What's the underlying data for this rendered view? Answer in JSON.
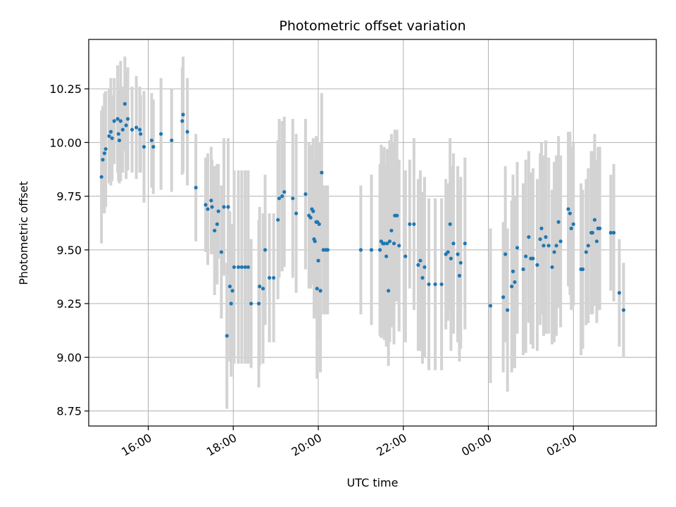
{
  "chart_data": {
    "type": "scatter",
    "title": "Photometric offset variation",
    "xlabel": "UTC time",
    "ylabel": "Photometric offset",
    "x_units": "hours since 00:00 of first day",
    "xlim": [
      14.6,
      27.95
    ],
    "ylim": [
      8.68,
      10.48
    ],
    "grid": true,
    "x_ticks": [
      {
        "value": 16,
        "label": "16:00"
      },
      {
        "value": 18,
        "label": "18:00"
      },
      {
        "value": 20,
        "label": "20:00"
      },
      {
        "value": 22,
        "label": "22:00"
      },
      {
        "value": 24,
        "label": "00:00"
      },
      {
        "value": 26,
        "label": "02:00"
      }
    ],
    "y_ticks": [
      {
        "value": 8.75,
        "label": "8.75"
      },
      {
        "value": 9.0,
        "label": "9.00"
      },
      {
        "value": 9.25,
        "label": "9.25"
      },
      {
        "value": 9.5,
        "label": "9.50"
      },
      {
        "value": 9.75,
        "label": "9.75"
      },
      {
        "value": 10.0,
        "label": "10.00"
      },
      {
        "value": 10.25,
        "label": "10.25"
      }
    ],
    "marker_color": "#1f77b4",
    "errorbar_color": "#d3d3d3",
    "series": [
      {
        "name": "offset",
        "points": [
          [
            14.9,
            9.84,
            0.31
          ],
          [
            14.93,
            9.92,
            0.25
          ],
          [
            14.97,
            9.95,
            0.28
          ],
          [
            15.0,
            9.97,
            0.27
          ],
          [
            15.08,
            10.03,
            0.22
          ],
          [
            15.12,
            10.05,
            0.25
          ],
          [
            15.15,
            10.02,
            0.2
          ],
          [
            15.2,
            10.1,
            0.2
          ],
          [
            15.28,
            10.11,
            0.25
          ],
          [
            15.3,
            10.04,
            0.22
          ],
          [
            15.32,
            10.01,
            0.2
          ],
          [
            15.35,
            10.1,
            0.28
          ],
          [
            15.4,
            10.06,
            0.2
          ],
          [
            15.45,
            10.18,
            0.22
          ],
          [
            15.48,
            10.08,
            0.25
          ],
          [
            15.52,
            10.11,
            0.24
          ],
          [
            15.62,
            10.06,
            0.2
          ],
          [
            15.72,
            10.07,
            0.24
          ],
          [
            15.8,
            10.06,
            0.2
          ],
          [
            15.82,
            10.04,
            0.18
          ],
          [
            15.9,
            9.98,
            0.26
          ],
          [
            16.08,
            10.01,
            0.22
          ],
          [
            16.12,
            9.98,
            0.22
          ],
          [
            16.3,
            10.04,
            0.26
          ],
          [
            16.55,
            10.01,
            0.24
          ],
          [
            16.8,
            10.1,
            0.25
          ],
          [
            16.82,
            10.13,
            0.27
          ],
          [
            16.92,
            10.05,
            0.25
          ],
          [
            17.12,
            9.79,
            0.25
          ],
          [
            17.35,
            9.71,
            0.22
          ],
          [
            17.4,
            9.69,
            0.26
          ],
          [
            17.48,
            9.73,
            0.25
          ],
          [
            17.5,
            9.7,
            0.22
          ],
          [
            17.56,
            9.59,
            0.3
          ],
          [
            17.62,
            9.62,
            0.28
          ],
          [
            17.65,
            9.68,
            0.22
          ],
          [
            17.72,
            9.49,
            0.31
          ],
          [
            17.78,
            9.7,
            0.32
          ],
          [
            17.85,
            9.1,
            0.34
          ],
          [
            17.88,
            9.7,
            0.32
          ],
          [
            17.92,
            9.33,
            0.35
          ],
          [
            17.95,
            9.25,
            0.34
          ],
          [
            17.98,
            9.31,
            0.31
          ],
          [
            18.02,
            9.42,
            0.45
          ],
          [
            18.12,
            9.42,
            0.45
          ],
          [
            18.2,
            9.42,
            0.45
          ],
          [
            18.28,
            9.42,
            0.45
          ],
          [
            18.35,
            9.42,
            0.45
          ],
          [
            18.42,
            9.25,
            0.3
          ],
          [
            18.6,
            9.25,
            0.39
          ],
          [
            18.62,
            9.33,
            0.37
          ],
          [
            18.7,
            9.32,
            0.35
          ],
          [
            18.75,
            9.5,
            0.35
          ],
          [
            18.85,
            9.37,
            0.3
          ],
          [
            18.95,
            9.37,
            0.3
          ],
          [
            19.05,
            9.64,
            0.37
          ],
          [
            19.08,
            9.74,
            0.37
          ],
          [
            19.15,
            9.75,
            0.35
          ],
          [
            19.2,
            9.77,
            0.35
          ],
          [
            19.4,
            9.74,
            0.37
          ],
          [
            19.48,
            9.67,
            0.37
          ],
          [
            19.7,
            9.76,
            0.35
          ],
          [
            19.78,
            9.66,
            0.34
          ],
          [
            19.82,
            9.65,
            0.33
          ],
          [
            19.85,
            9.69,
            0.3
          ],
          [
            19.88,
            9.68,
            0.34
          ],
          [
            19.9,
            9.55,
            0.37
          ],
          [
            19.92,
            9.54,
            0.35
          ],
          [
            19.95,
            9.63,
            0.4
          ],
          [
            19.97,
            9.32,
            0.42
          ],
          [
            19.98,
            9.63,
            0.38
          ],
          [
            20.0,
            9.45,
            0.36
          ],
          [
            20.02,
            9.62,
            0.38
          ],
          [
            20.05,
            9.31,
            0.38
          ],
          [
            20.08,
            9.86,
            0.37
          ],
          [
            20.12,
            9.5,
            0.3
          ],
          [
            20.18,
            9.5,
            0.3
          ],
          [
            20.22,
            9.5,
            0.3
          ],
          [
            21.0,
            9.5,
            0.3
          ],
          [
            21.25,
            9.5,
            0.35
          ],
          [
            21.45,
            9.5,
            0.4
          ],
          [
            21.48,
            9.54,
            0.45
          ],
          [
            21.52,
            9.53,
            0.42
          ],
          [
            21.55,
            9.53,
            0.45
          ],
          [
            21.6,
            9.47,
            0.42
          ],
          [
            21.62,
            9.53,
            0.44
          ],
          [
            21.65,
            9.31,
            0.35
          ],
          [
            21.68,
            9.54,
            0.47
          ],
          [
            21.72,
            9.59,
            0.45
          ],
          [
            21.78,
            9.53,
            0.47
          ],
          [
            21.8,
            9.66,
            0.4
          ],
          [
            21.85,
            9.66,
            0.4
          ],
          [
            21.9,
            9.52,
            0.4
          ],
          [
            22.05,
            9.47,
            0.4
          ],
          [
            22.15,
            9.62,
            0.3
          ],
          [
            22.25,
            9.62,
            0.4
          ],
          [
            22.35,
            9.43,
            0.4
          ],
          [
            22.4,
            9.45,
            0.42
          ],
          [
            22.45,
            9.37,
            0.4
          ],
          [
            22.5,
            9.42,
            0.42
          ],
          [
            22.6,
            9.34,
            0.4
          ],
          [
            22.75,
            9.34,
            0.4
          ],
          [
            22.9,
            9.34,
            0.4
          ],
          [
            23.0,
            9.48,
            0.35
          ],
          [
            23.05,
            9.49,
            0.32
          ],
          [
            23.1,
            9.62,
            0.4
          ],
          [
            23.12,
            9.46,
            0.43
          ],
          [
            23.18,
            9.53,
            0.42
          ],
          [
            23.28,
            9.48,
            0.41
          ],
          [
            23.32,
            9.38,
            0.4
          ],
          [
            23.35,
            9.44,
            0.4
          ],
          [
            23.45,
            9.53,
            0.4
          ],
          [
            24.05,
            9.24,
            0.36
          ],
          [
            24.35,
            9.28,
            0.35
          ],
          [
            24.4,
            9.48,
            0.41
          ],
          [
            24.45,
            9.22,
            0.38
          ],
          [
            24.55,
            9.33,
            0.4
          ],
          [
            24.58,
            9.4,
            0.45
          ],
          [
            24.62,
            9.35,
            0.4
          ],
          [
            24.68,
            9.51,
            0.4
          ],
          [
            24.82,
            9.41,
            0.4
          ],
          [
            24.88,
            9.47,
            0.45
          ],
          [
            24.95,
            9.56,
            0.4
          ],
          [
            25.0,
            9.46,
            0.4
          ],
          [
            25.05,
            9.46,
            0.42
          ],
          [
            25.15,
            9.43,
            0.4
          ],
          [
            25.22,
            9.55,
            0.4
          ],
          [
            25.25,
            9.6,
            0.4
          ],
          [
            25.3,
            9.52,
            0.42
          ],
          [
            25.35,
            9.56,
            0.45
          ],
          [
            25.42,
            9.52,
            0.41
          ],
          [
            25.5,
            9.42,
            0.36
          ],
          [
            25.55,
            9.49,
            0.42
          ],
          [
            25.6,
            9.52,
            0.42
          ],
          [
            25.65,
            9.63,
            0.4
          ],
          [
            25.7,
            9.54,
            0.4
          ],
          [
            25.88,
            9.69,
            0.36
          ],
          [
            25.92,
            9.67,
            0.38
          ],
          [
            25.95,
            9.6,
            0.38
          ],
          [
            26.0,
            9.62,
            0.38
          ],
          [
            26.18,
            9.41,
            0.4
          ],
          [
            26.22,
            9.41,
            0.37
          ],
          [
            26.3,
            9.49,
            0.34
          ],
          [
            26.35,
            9.52,
            0.36
          ],
          [
            26.42,
            9.58,
            0.38
          ],
          [
            26.45,
            9.58,
            0.38
          ],
          [
            26.5,
            9.64,
            0.4
          ],
          [
            26.55,
            9.54,
            0.38
          ],
          [
            26.58,
            9.6,
            0.38
          ],
          [
            26.62,
            9.6,
            0.38
          ],
          [
            26.88,
            9.58,
            0.27
          ],
          [
            26.95,
            9.58,
            0.32
          ],
          [
            27.08,
            9.3,
            0.25
          ],
          [
            27.18,
            9.22,
            0.22
          ]
        ]
      }
    ]
  }
}
